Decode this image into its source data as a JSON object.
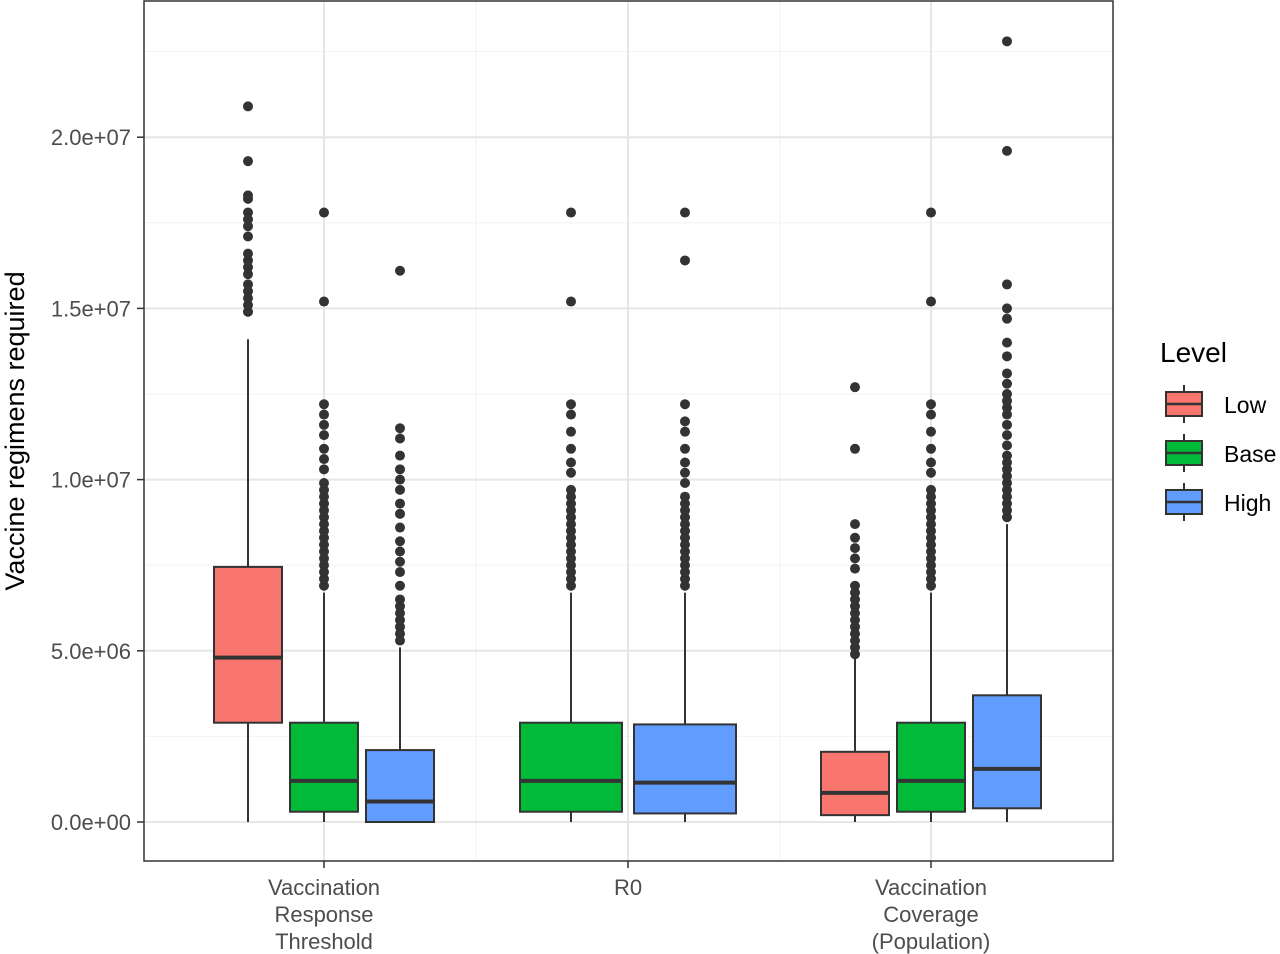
{
  "chart_data": {
    "type": "boxplot",
    "title": "",
    "xlabel": "",
    "ylabel": "Vaccine regimens required",
    "ylim": [
      -1000000,
      23700000
    ],
    "y_ticks": [
      0,
      5000000,
      10000000,
      15000000,
      20000000
    ],
    "y_tick_labels": [
      "0.0e+00",
      "5.0e+06",
      "1.0e+07",
      "1.5e+07",
      "2.0e+07"
    ],
    "grid": true,
    "legend": {
      "title": "Level",
      "placement": "right"
    },
    "categories": [
      {
        "label_lines": [
          "Vaccination",
          "Response",
          "Threshold"
        ]
      },
      {
        "label_lines": [
          "R0"
        ]
      },
      {
        "label_lines": [
          "Vaccination",
          "Coverage",
          "(Population)"
        ]
      }
    ],
    "levels": [
      {
        "name": "Low",
        "color": "#F8766D"
      },
      {
        "name": "Base",
        "color": "#00BA38"
      },
      {
        "name": "High",
        "color": "#619CFF"
      }
    ],
    "boxes": [
      {
        "category": 0,
        "level": "Low",
        "min": 0,
        "q1": 2900000,
        "median": 4800000,
        "q3": 7450000,
        "max": 14100000,
        "outliers": [
          14900000,
          15100000,
          15300000,
          15500000,
          15700000,
          16000000,
          16200000,
          16400000,
          16600000,
          17100000,
          17400000,
          17600000,
          17800000,
          18200000,
          18300000,
          19300000,
          20900000
        ]
      },
      {
        "category": 0,
        "level": "Base",
        "min": 0,
        "q1": 300000,
        "median": 1200000,
        "q3": 2900000,
        "max": 6700000,
        "outliers": [
          6900000,
          7100000,
          7300000,
          7500000,
          7700000,
          7900000,
          8100000,
          8300000,
          8500000,
          8700000,
          8900000,
          9100000,
          9300000,
          9500000,
          9700000,
          9900000,
          10300000,
          10600000,
          10900000,
          11300000,
          11600000,
          11900000,
          12200000,
          15200000,
          17800000
        ]
      },
      {
        "category": 0,
        "level": "High",
        "min": 0,
        "q1": 0,
        "median": 600000,
        "q3": 2100000,
        "max": 5100000,
        "outliers": [
          5300000,
          5500000,
          5700000,
          5900000,
          6100000,
          6300000,
          6500000,
          6900000,
          7300000,
          7600000,
          7900000,
          8200000,
          8600000,
          9000000,
          9300000,
          9700000,
          10000000,
          10300000,
          10700000,
          11200000,
          11500000,
          16100000
        ]
      },
      {
        "category": 1,
        "level": "Base",
        "min": 0,
        "q1": 300000,
        "median": 1200000,
        "q3": 2900000,
        "max": 6700000,
        "outliers": [
          6900000,
          7100000,
          7300000,
          7500000,
          7700000,
          7900000,
          8100000,
          8300000,
          8500000,
          8700000,
          8900000,
          9100000,
          9300000,
          9500000,
          9700000,
          10200000,
          10500000,
          10900000,
          11400000,
          11900000,
          12200000,
          15200000,
          17800000
        ]
      },
      {
        "category": 1,
        "level": "High",
        "min": 0,
        "q1": 250000,
        "median": 1150000,
        "q3": 2850000,
        "max": 6700000,
        "outliers": [
          6900000,
          7100000,
          7300000,
          7500000,
          7700000,
          7900000,
          8100000,
          8300000,
          8500000,
          8700000,
          8900000,
          9100000,
          9300000,
          9500000,
          9900000,
          10200000,
          10500000,
          10900000,
          11400000,
          11700000,
          12200000,
          16400000,
          17800000
        ]
      },
      {
        "category": 2,
        "level": "Low",
        "min": 0,
        "q1": 200000,
        "median": 850000,
        "q3": 2050000,
        "max": 4800000,
        "outliers": [
          4900000,
          5100000,
          5300000,
          5500000,
          5700000,
          5900000,
          6100000,
          6300000,
          6500000,
          6700000,
          6900000,
          7400000,
          7700000,
          8000000,
          8300000,
          8700000,
          10900000,
          12700000
        ]
      },
      {
        "category": 2,
        "level": "Base",
        "min": 0,
        "q1": 300000,
        "median": 1200000,
        "q3": 2900000,
        "max": 6700000,
        "outliers": [
          6900000,
          7100000,
          7300000,
          7500000,
          7700000,
          7900000,
          8100000,
          8300000,
          8500000,
          8700000,
          8900000,
          9100000,
          9300000,
          9500000,
          9700000,
          10200000,
          10500000,
          10900000,
          11400000,
          11900000,
          12200000,
          15200000,
          17800000
        ]
      },
      {
        "category": 2,
        "level": "High",
        "min": 0,
        "q1": 400000,
        "median": 1550000,
        "q3": 3700000,
        "max": 8700000,
        "outliers": [
          8900000,
          9100000,
          9300000,
          9500000,
          9700000,
          9900000,
          10100000,
          10300000,
          10500000,
          10700000,
          11000000,
          11300000,
          11600000,
          11900000,
          12100000,
          12300000,
          12500000,
          12800000,
          13100000,
          13600000,
          14000000,
          14700000,
          15000000,
          15700000,
          19600000,
          22800000
        ]
      }
    ]
  }
}
